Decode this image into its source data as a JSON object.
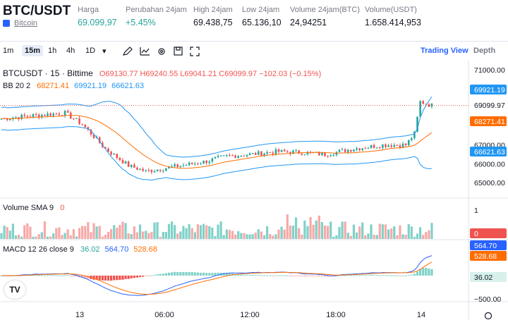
{
  "header": {
    "pair": "BTC/USDT",
    "coin_name": "Bitcoin",
    "stats": [
      {
        "label": "Harga",
        "value": "69.099,97",
        "color": "up"
      },
      {
        "label": "Perubahan 24jam",
        "value": "+5.45%",
        "color": "up"
      },
      {
        "label": "High 24jam",
        "value": "69.438,75",
        "color": ""
      },
      {
        "label": "Low 24jam",
        "value": "65.136,10",
        "color": ""
      },
      {
        "label": "Volume 24jam(BTC)",
        "value": "24,94251",
        "color": ""
      },
      {
        "label": "Volume(USDT)",
        "value": "1.658.414,953",
        "color": ""
      }
    ]
  },
  "toolbar": {
    "intervals": [
      "1m",
      "15m",
      "1h",
      "4h",
      "1D"
    ],
    "active_interval": "15m",
    "tools": [
      "pencil-icon",
      "line-chart-icon",
      "gear-icon",
      "save-icon",
      "fullscreen-icon"
    ],
    "trading_view_label": "Trading View",
    "depth_label": "Depth"
  },
  "legend": {
    "symbol": "BTCUSDT · 15 · Bittime",
    "ohlc": "O69130.77 H69240.55 L69041.21 C69099.97 −102.03 (−0.15%)",
    "bb_label": "BB 20 2",
    "bb_values": [
      "68271.41",
      "69921.19",
      "66621.63"
    ],
    "vol_label": "Volume SMA 9",
    "vol_value": "0",
    "macd_label": "MACD 12 26 close 9",
    "macd_values": [
      "36.02",
      "564.70",
      "528.68"
    ]
  },
  "axis": {
    "price_ticks": [
      "71000.00",
      "67000.00",
      "66000.00",
      "65000.00"
    ],
    "price_tick_values": [
      71000,
      67000,
      66000,
      65000
    ],
    "vol_tick": "1",
    "macd_tick": "−500.00",
    "time_labels": [
      "13",
      "06:00",
      "12:00",
      "18:00",
      "14"
    ]
  },
  "badges": {
    "bb_upper": "69921.19",
    "last": "69099.97",
    "bb_mid": "68271.41",
    "bb_lower": "66621.63",
    "vol": "0",
    "macd_line": "564.70",
    "signal": "528.68",
    "hist": "36.02"
  },
  "logo_text": "TV",
  "colors": {
    "up": "#26a69a",
    "down": "#ef5350",
    "bb_band": "#2196f3",
    "bb_mid": "#ff6d00",
    "macd": "#2962ff",
    "signal": "#ff6d00",
    "accent": "#2962ff"
  }
}
